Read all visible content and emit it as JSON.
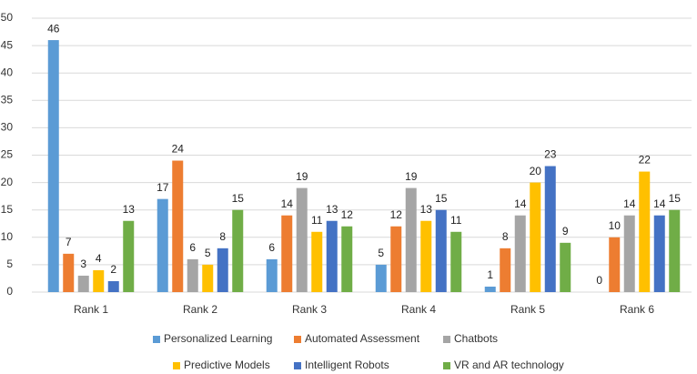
{
  "chart_data": {
    "type": "bar",
    "categories": [
      "Rank 1",
      "Rank 2",
      "Rank 3",
      "Rank 4",
      "Rank 5",
      "Rank 6"
    ],
    "series": [
      {
        "name": "Personalized Learning",
        "color": "#5b9bd5",
        "values": [
          46,
          17,
          6,
          5,
          1,
          0
        ]
      },
      {
        "name": "Automated Assessment",
        "color": "#ed7d31",
        "values": [
          7,
          24,
          14,
          12,
          8,
          10
        ]
      },
      {
        "name": "Chatbots",
        "color": "#a5a5a5",
        "values": [
          3,
          6,
          19,
          19,
          14,
          14
        ]
      },
      {
        "name": "Predictive Models",
        "color": "#ffc000",
        "values": [
          4,
          5,
          11,
          13,
          20,
          22
        ]
      },
      {
        "name": "Intelligent Robots",
        "color": "#4472c4",
        "values": [
          2,
          8,
          13,
          15,
          23,
          14
        ]
      },
      {
        "name": "VR and AR technology",
        "color": "#70ad47",
        "values": [
          13,
          15,
          12,
          11,
          9,
          15
        ]
      }
    ],
    "ylim": [
      0,
      50
    ],
    "yticks": [
      0,
      5,
      10,
      15,
      20,
      25,
      30,
      35,
      40,
      45,
      50
    ],
    "grid": true,
    "legend": "bottom",
    "data_labels": true
  }
}
